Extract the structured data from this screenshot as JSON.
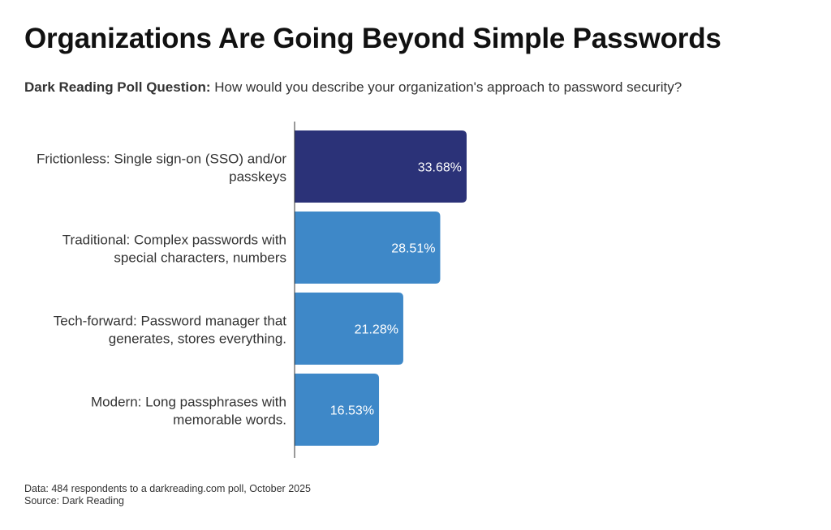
{
  "title": "Organizations Are Going Beyond Simple Passwords",
  "subtitle": {
    "lead": "Dark Reading Poll Question:",
    "text": " How would you describe your organization's approach to password security?"
  },
  "chart_data": {
    "type": "bar",
    "orientation": "horizontal",
    "categories": [
      [
        "Frictionless: Single sign-on (SSO) and/or",
        "passkeys"
      ],
      [
        "Traditional: Complex passwords with",
        "special characters, numbers"
      ],
      [
        "Tech-forward: Password manager that",
        "generates, stores everything."
      ],
      [
        "Modern: Long passphrases with",
        "memorable words."
      ]
    ],
    "values": [
      33.68,
      28.51,
      21.28,
      16.53
    ],
    "value_labels": [
      "33.68%",
      "28.51%",
      "21.28%",
      "16.53%"
    ],
    "colors": [
      "#2b3278",
      "#3e88c8",
      "#3e88c8",
      "#3e88c8"
    ],
    "xlim": [
      0,
      100
    ],
    "grid": false,
    "legend": "none"
  },
  "footer": {
    "data_note": "Data: 484 respondents to a darkreading.com poll, October 2025",
    "source": "Source: Dark Reading"
  }
}
